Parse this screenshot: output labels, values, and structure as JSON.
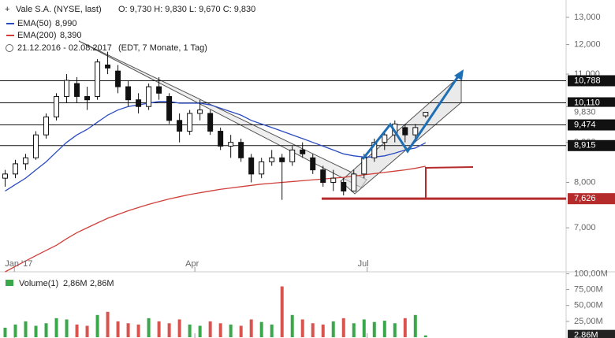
{
  "chart_data": {
    "type": "candlestick",
    "title": "Vale S.A. (NYSE, last)",
    "quote": "O: 9,730  H: 9,830  L: 9,670  C: 9,830",
    "period": "21.12.2016 - 02.08.2017",
    "period_note": "(EDT, 7 Monate, 1 Tag)",
    "log_scale": true,
    "xlim": [
      -0.5,
      54.7
    ],
    "xticks": [
      {
        "value": 0.9,
        "label": "Jan '17"
      },
      {
        "value": 18.5,
        "label": "Apr"
      },
      {
        "value": 35.3,
        "label": "Jul"
      }
    ],
    "ylim": [
      6.15,
      13.68
    ],
    "yticks": [
      {
        "value": 7,
        "label": "7,000"
      },
      {
        "value": 8,
        "label": "8,000"
      },
      {
        "value": 9,
        "label": "9,000"
      },
      {
        "value": 10,
        "label": "10,000"
      },
      {
        "value": 11,
        "label": "11,000"
      },
      {
        "value": 12,
        "label": "12,000"
      },
      {
        "value": 13,
        "label": "13,000"
      }
    ],
    "ohlc": [
      [
        8.1,
        8.3,
        7.9,
        8.2
      ],
      [
        8.2,
        8.55,
        8.1,
        8.45
      ],
      [
        8.45,
        8.7,
        8.3,
        8.6
      ],
      [
        8.6,
        9.3,
        8.55,
        9.2
      ],
      [
        9.2,
        9.8,
        9.1,
        9.7
      ],
      [
        9.7,
        10.4,
        9.6,
        10.3
      ],
      [
        10.3,
        11.0,
        10.1,
        10.8
      ],
      [
        10.7,
        10.9,
        10.1,
        10.3
      ],
      [
        10.3,
        10.6,
        9.9,
        10.2
      ],
      [
        10.3,
        11.5,
        10.2,
        11.4
      ],
      [
        11.3,
        11.75,
        11.0,
        11.2
      ],
      [
        11.1,
        11.3,
        10.4,
        10.6
      ],
      [
        10.6,
        10.8,
        10.0,
        10.2
      ],
      [
        10.2,
        10.4,
        9.8,
        10.0
      ],
      [
        10.0,
        10.7,
        9.9,
        10.6
      ],
      [
        10.6,
        10.9,
        10.2,
        10.4
      ],
      [
        10.3,
        10.4,
        9.5,
        9.6
      ],
      [
        9.6,
        9.8,
        9.0,
        9.3
      ],
      [
        9.3,
        9.9,
        9.2,
        9.8
      ],
      [
        9.8,
        10.2,
        9.6,
        9.9
      ],
      [
        9.8,
        9.9,
        9.2,
        9.3
      ],
      [
        9.3,
        9.4,
        8.8,
        8.9
      ],
      [
        8.9,
        9.2,
        8.6,
        9.0
      ],
      [
        9.0,
        9.1,
        8.5,
        8.6
      ],
      [
        8.6,
        8.7,
        8.0,
        8.2
      ],
      [
        8.2,
        8.6,
        8.1,
        8.5
      ],
      [
        8.5,
        8.8,
        8.4,
        8.6
      ],
      [
        8.6,
        8.7,
        7.6,
        8.5
      ],
      [
        8.5,
        8.9,
        8.4,
        8.8
      ],
      [
        8.8,
        9.0,
        8.6,
        8.7
      ],
      [
        8.6,
        8.7,
        8.2,
        8.3
      ],
      [
        8.3,
        8.4,
        7.9,
        8.0
      ],
      [
        8.0,
        8.3,
        7.8,
        8.1
      ],
      [
        8.0,
        8.1,
        7.7,
        7.8
      ],
      [
        7.8,
        8.3,
        7.8,
        8.2
      ],
      [
        8.2,
        8.7,
        8.1,
        8.6
      ],
      [
        8.6,
        9.1,
        8.5,
        9.0
      ],
      [
        9.0,
        9.3,
        8.8,
        9.2
      ],
      [
        9.2,
        9.6,
        9.0,
        9.5
      ],
      [
        9.4,
        9.5,
        9.0,
        9.2
      ],
      [
        9.2,
        9.5,
        9.1,
        9.4
      ],
      [
        9.73,
        9.83,
        9.67,
        9.83
      ]
    ],
    "series": [
      {
        "name": "EMA(50)",
        "last_label": "8,990",
        "color": "#2a4bc0",
        "values": [
          7.8,
          7.95,
          8.1,
          8.3,
          8.5,
          8.75,
          9.0,
          9.2,
          9.35,
          9.55,
          9.75,
          9.9,
          10.0,
          10.05,
          10.1,
          10.15,
          10.15,
          10.1,
          10.1,
          10.1,
          10.05,
          9.95,
          9.85,
          9.75,
          9.6,
          9.5,
          9.4,
          9.3,
          9.2,
          9.1,
          9.0,
          8.9,
          8.8,
          8.7,
          8.65,
          8.62,
          8.62,
          8.65,
          8.72,
          8.8,
          8.85,
          8.99
        ]
      },
      {
        "name": "EMA(200)",
        "last_label": "8,390",
        "color": "#d0403a",
        "values": [
          6.15,
          6.25,
          6.35,
          6.45,
          6.55,
          6.65,
          6.78,
          6.9,
          7.0,
          7.1,
          7.2,
          7.28,
          7.36,
          7.43,
          7.5,
          7.56,
          7.62,
          7.67,
          7.72,
          7.76,
          7.8,
          7.84,
          7.87,
          7.9,
          7.93,
          7.96,
          7.98,
          8.0,
          8.02,
          8.04,
          8.06,
          8.08,
          8.1,
          8.12,
          8.15,
          8.18,
          8.21,
          8.24,
          8.27,
          8.3,
          8.34,
          8.39
        ]
      }
    ],
    "levels": [
      {
        "value": 10.788,
        "label": "10,788",
        "color": "#111"
      },
      {
        "value": 10.11,
        "label": "10,110",
        "color": "#111"
      },
      {
        "value": 9.474,
        "label": "9,474",
        "color": "#111"
      },
      {
        "value": 8.915,
        "label": "8,915",
        "color": "#111"
      },
      {
        "value": 7.626,
        "label": "7,626",
        "color": "#b52a2a"
      }
    ],
    "current_price": {
      "value": 9.83,
      "label": "9,830"
    },
    "volume": {
      "title": "Volume(1)",
      "legend_labels": [
        "2,86M",
        "2,86M"
      ],
      "ylim": [
        0,
        103
      ],
      "yticks": [
        {
          "value": 25,
          "label": "25,00M"
        },
        {
          "value": 50,
          "label": "50,00M"
        },
        {
          "value": 75,
          "label": "75,00M"
        },
        {
          "value": 100,
          "label": "100,00M"
        }
      ],
      "values": [
        15,
        20,
        25,
        18,
        22,
        30,
        28,
        20,
        18,
        35,
        40,
        25,
        22,
        20,
        30,
        25,
        22,
        28,
        20,
        18,
        25,
        22,
        20,
        18,
        28,
        24,
        20,
        80,
        35,
        28,
        22,
        20,
        25,
        30,
        22,
        28,
        24,
        26,
        22,
        30,
        35,
        2.86
      ],
      "last": {
        "value": 2.86,
        "label": "2,86M"
      },
      "up_color": "#3aa84a",
      "down_color": "#d9534f"
    }
  }
}
